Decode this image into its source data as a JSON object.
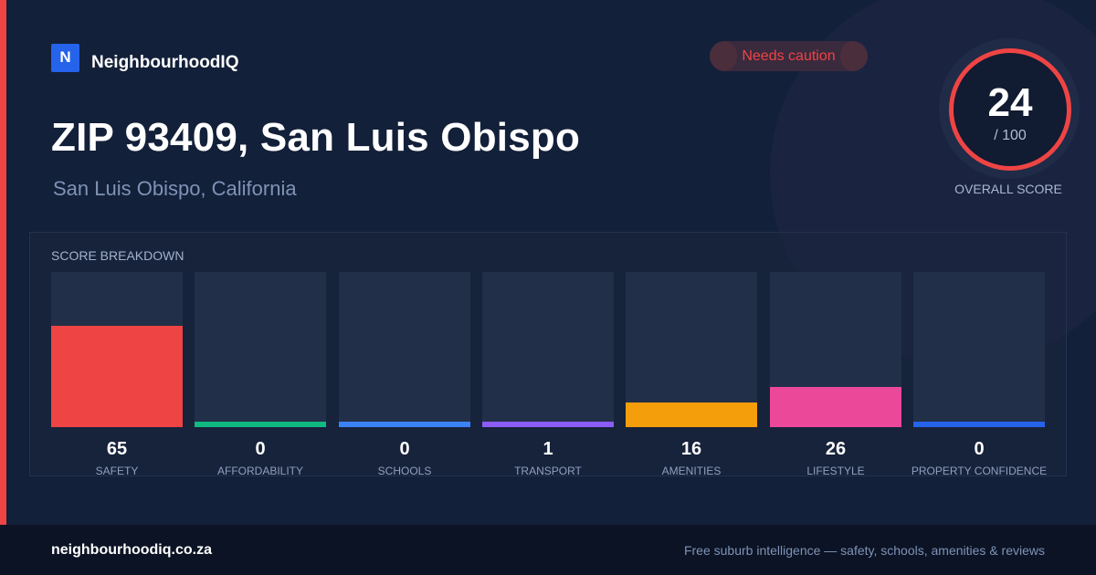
{
  "brand": {
    "logo_letter": "N",
    "name": "NeighbourhoodIQ"
  },
  "badge": {
    "label": "Needs caution",
    "color": "#ef4444"
  },
  "title": "ZIP 93409, San Luis Obispo",
  "subtitle": "San Luis Obispo, California",
  "overall": {
    "score": "24",
    "denominator": "/ 100",
    "label": "OVERALL SCORE",
    "color": "#ef4444"
  },
  "breakdown": {
    "title": "SCORE BREAKDOWN",
    "max": 100,
    "items": [
      {
        "label": "SAFETY",
        "value": 65,
        "color": "#ef4444"
      },
      {
        "label": "AFFORDABILITY",
        "value": 0,
        "color": "#10b981"
      },
      {
        "label": "SCHOOLS",
        "value": 0,
        "color": "#3b82f6"
      },
      {
        "label": "TRANSPORT",
        "value": 1,
        "color": "#8b5cf6"
      },
      {
        "label": "AMENITIES",
        "value": 16,
        "color": "#f59e0b"
      },
      {
        "label": "LIFESTYLE",
        "value": 26,
        "color": "#ec4899"
      },
      {
        "label": "PROPERTY CONFIDENCE",
        "value": 0,
        "color": "#2563eb"
      }
    ]
  },
  "footer": {
    "domain": "neighbourhoodiq.co.za",
    "tagline": "Free suburb intelligence — safety, schools, amenities & reviews"
  }
}
